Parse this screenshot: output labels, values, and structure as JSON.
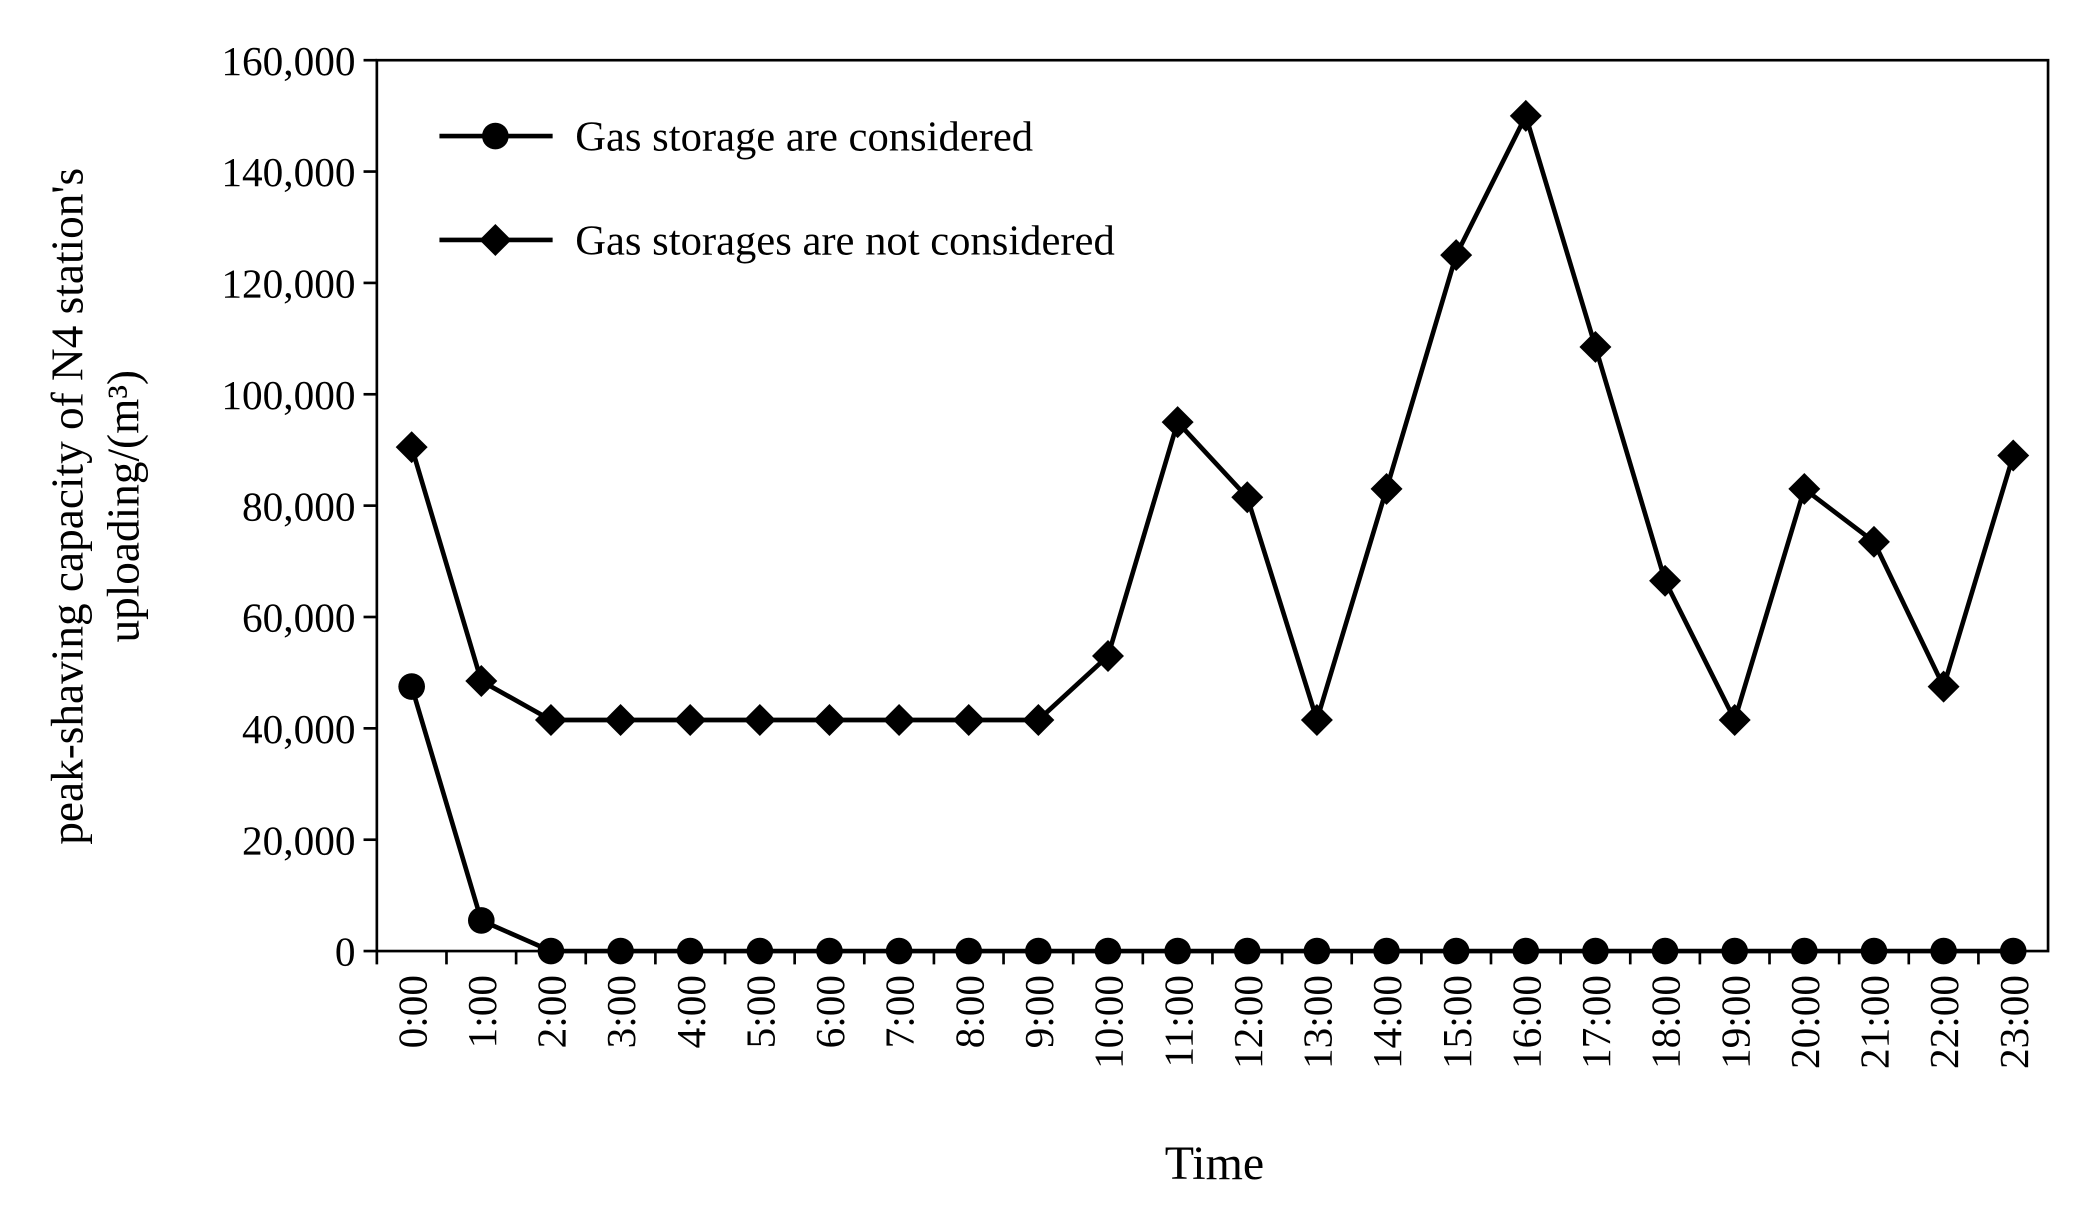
{
  "chart_data": {
    "type": "line",
    "x_label": "Time",
    "y_label": [
      "peak-shaving capacity of  N4 station's",
      "uploading/(m³)"
    ],
    "categories": [
      "0:00",
      "1:00",
      "2:00",
      "3:00",
      "4:00",
      "5:00",
      "6:00",
      "7:00",
      "8:00",
      "9:00",
      "10:00",
      "11:00",
      "12:00",
      "13:00",
      "14:00",
      "15:00",
      "16:00",
      "17:00",
      "18:00",
      "19:00",
      "20:00",
      "21:00",
      "22:00",
      "23:00"
    ],
    "series": [
      {
        "name": "Gas storage are considered",
        "color": "#000000",
        "marker": "circle",
        "values": [
          47500,
          5500,
          0,
          0,
          0,
          0,
          0,
          0,
          0,
          0,
          0,
          0,
          0,
          0,
          0,
          0,
          0,
          0,
          0,
          0,
          0,
          0,
          0,
          0
        ]
      },
      {
        "name": "Gas storages are not considered",
        "color": "#000000",
        "marker": "diamond",
        "values": [
          90500,
          48500,
          41500,
          41500,
          41500,
          41500,
          41500,
          41500,
          41500,
          41500,
          53000,
          95000,
          81500,
          41500,
          83000,
          125000,
          150000,
          108500,
          66500,
          41500,
          83000,
          73500,
          47500,
          89000
        ]
      }
    ],
    "ylim": [
      0,
      160000
    ],
    "yticks": [
      0,
      {
        "value": 20000,
        "label": "20,000"
      },
      {
        "value": 40000,
        "label": "40,000"
      },
      {
        "value": 60000,
        "label": "60,000"
      },
      {
        "value": 80000,
        "label": "80,000"
      },
      {
        "value": 100000,
        "label": "100,000"
      },
      {
        "value": 120000,
        "label": "120,000"
      },
      {
        "value": 140000,
        "label": "140,000"
      },
      {
        "value": 160000,
        "label": "160,000"
      }
    ],
    "legend": "top-left"
  }
}
